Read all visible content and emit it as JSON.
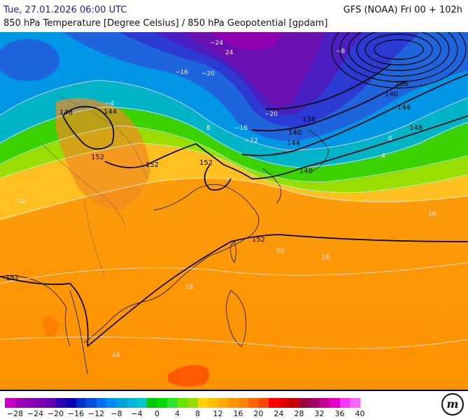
{
  "header": {
    "valid_time": "Tue, 27.01.2026 06:00 UTC",
    "model_run": "GFS (NOAA) Fri 00 + 102h",
    "subtitle": "850 hPa Temperature [Degree Celsius] / 850 hPa Geopotential [gpdam]"
  },
  "legend": {
    "colors": [
      "#c800c8",
      "#a000b4",
      "#8c00b4",
      "#7800b4",
      "#6400b4",
      "#3200b4",
      "#0a00b4",
      "#0032c8",
      "#0050dc",
      "#006ef0",
      "#008cf0",
      "#00a0dc",
      "#00b4dc",
      "#00c8c8",
      "#00c800",
      "#00dc00",
      "#28e628",
      "#64e600",
      "#96dc00",
      "#ffd200",
      "#ffbe00",
      "#ffaa00",
      "#ff9600",
      "#ff8200",
      "#ff6400",
      "#ff4600",
      "#ff0000",
      "#e10000",
      "#c80000",
      "#a0003c",
      "#a00064",
      "#c80096",
      "#e600c8",
      "#ff32ff",
      "#ff64ff"
    ],
    "ticks": [
      "−28",
      "−24",
      "−20",
      "−16",
      "−12",
      "−8",
      "−4",
      "0",
      "4",
      "8",
      "12",
      "16",
      "20",
      "24",
      "28",
      "32",
      "36",
      "40"
    ],
    "logo_text": "m"
  },
  "map": {
    "geopotential_labels": [
      "136",
      "138",
      "140",
      "140",
      "144",
      "144",
      "144",
      "148",
      "148",
      "148",
      "152",
      "152",
      "152",
      "152",
      "152"
    ],
    "temperature_labels": [
      "−24",
      "−20",
      "−20",
      "−16",
      "−16",
      "−12",
      "−8",
      "−4",
      "0",
      "4",
      "8",
      "12",
      "16",
      "16",
      "16",
      "16",
      "20",
      "24"
    ]
  }
}
